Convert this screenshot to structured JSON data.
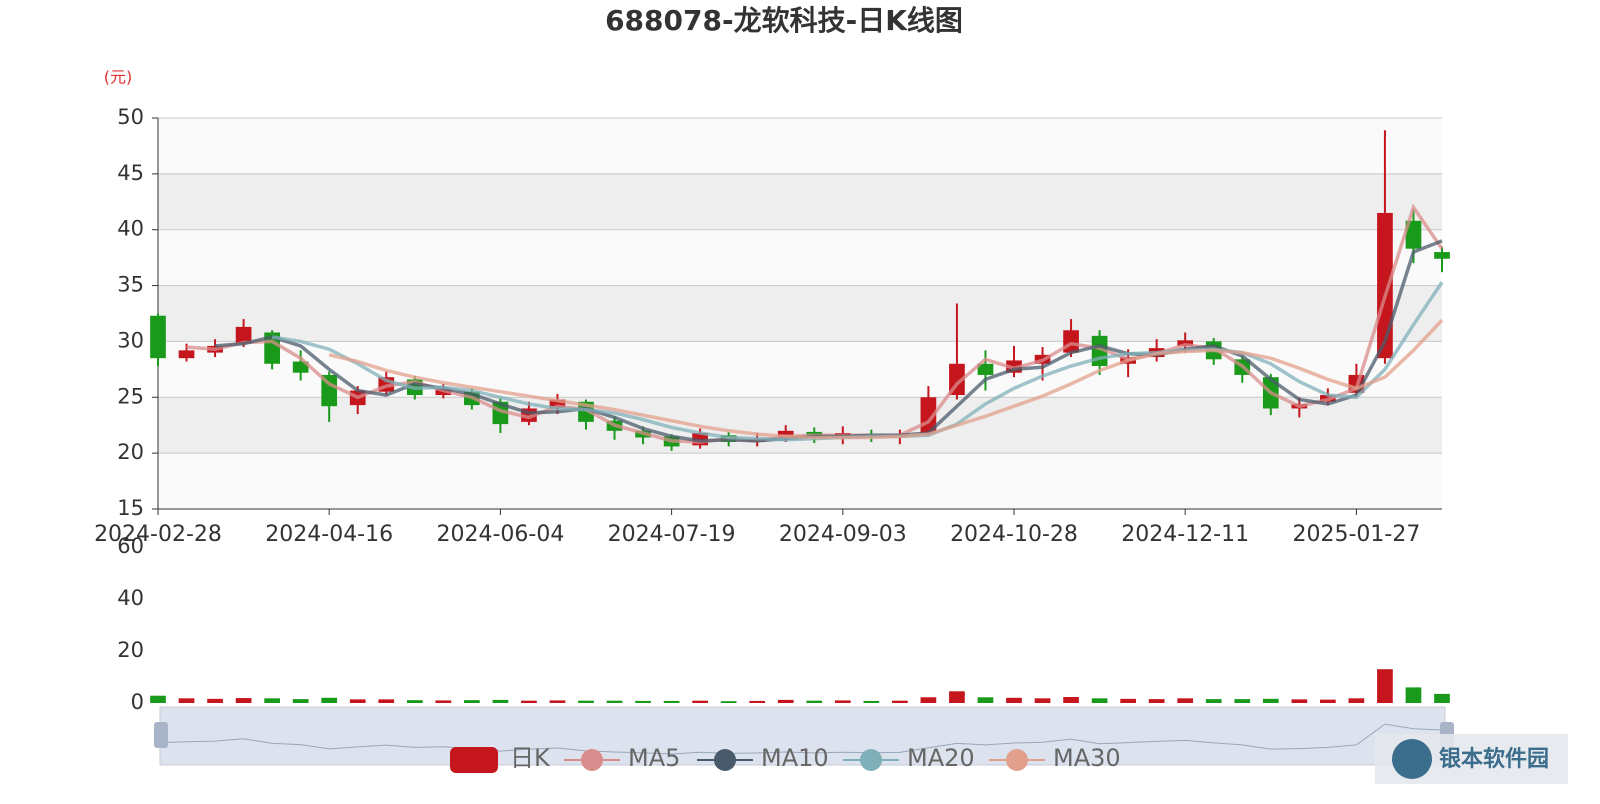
{
  "chart_data": [
    {
      "type": "candlestick",
      "title": "688078-龙软科技-日K线图",
      "ylabel": "(元)",
      "watermark": "银本软件园",
      "categories": [
        "2024-02-28",
        null,
        null,
        null,
        null,
        null,
        "2024-04-16",
        null,
        null,
        null,
        null,
        null,
        "2024-06-04",
        null,
        null,
        null,
        null,
        null,
        "2024-07-19",
        null,
        null,
        null,
        null,
        null,
        "2024-09-03",
        null,
        null,
        null,
        null,
        null,
        "2024-10-28",
        null,
        null,
        null,
        null,
        null,
        "2024-12-11",
        null,
        null,
        null,
        null,
        null,
        "2025-01-27",
        null,
        null,
        null
      ],
      "ylim": [
        15,
        50
      ],
      "yticks": [
        15,
        20,
        25,
        30,
        35,
        40,
        45,
        50
      ],
      "grid": true,
      "up_color": "#c4161c",
      "down_color": "#1a9a1a",
      "series": [
        {
          "name": "日K",
          "type": "candlestick",
          "color": "#c4161c",
          "values": [
            [
              32.3,
              28.5,
              27.8,
              32.5
            ],
            [
              28.5,
              29.2,
              28.2,
              29.8
            ],
            [
              29.0,
              29.6,
              28.6,
              30.2
            ],
            [
              29.8,
              31.3,
              29.5,
              32.0
            ],
            [
              30.8,
              28.0,
              27.5,
              31.0
            ],
            [
              28.2,
              27.2,
              26.5,
              29.2
            ],
            [
              27.0,
              24.2,
              22.8,
              27.3
            ],
            [
              24.3,
              25.6,
              23.5,
              26.0
            ],
            [
              25.5,
              26.8,
              25.2,
              27.3
            ],
            [
              26.6,
              25.2,
              24.8,
              26.9
            ],
            [
              25.2,
              25.7,
              24.9,
              26.2
            ],
            [
              25.5,
              24.3,
              23.9,
              25.8
            ],
            [
              24.6,
              22.6,
              21.8,
              24.9
            ],
            [
              22.8,
              24.0,
              22.5,
              24.6
            ],
            [
              24.0,
              24.8,
              23.5,
              25.3
            ],
            [
              24.6,
              22.8,
              22.1,
              24.8
            ],
            [
              22.9,
              22.0,
              21.2,
              23.3
            ],
            [
              22.0,
              21.4,
              20.8,
              22.4
            ],
            [
              21.5,
              20.6,
              20.2,
              21.7
            ],
            [
              20.7,
              21.8,
              20.4,
              22.2
            ],
            [
              21.6,
              21.0,
              20.6,
              21.9
            ],
            [
              21.0,
              21.3,
              20.6,
              21.8
            ],
            [
              21.4,
              22.0,
              21.0,
              22.5
            ],
            [
              21.9,
              21.4,
              20.9,
              22.3
            ],
            [
              21.4,
              21.8,
              20.8,
              22.4
            ],
            [
              21.6,
              21.5,
              21.0,
              22.1
            ],
            [
              21.4,
              21.7,
              20.8,
              22.1
            ],
            [
              21.8,
              25.0,
              21.6,
              26.0
            ],
            [
              25.2,
              28.0,
              24.8,
              33.4
            ],
            [
              28.0,
              27.0,
              25.6,
              29.2
            ],
            [
              27.2,
              28.3,
              26.8,
              29.6
            ],
            [
              28.0,
              28.8,
              26.5,
              29.5
            ],
            [
              29.0,
              31.0,
              28.6,
              32.0
            ],
            [
              30.5,
              27.8,
              27.0,
              31.0
            ],
            [
              28.0,
              28.6,
              26.8,
              29.3
            ],
            [
              28.6,
              29.4,
              28.2,
              30.2
            ],
            [
              29.6,
              30.1,
              29.0,
              30.8
            ],
            [
              30.0,
              28.4,
              27.9,
              30.3
            ],
            [
              28.4,
              27.0,
              26.3,
              28.7
            ],
            [
              26.8,
              24.0,
              23.4,
              27.1
            ],
            [
              24.0,
              24.4,
              23.2,
              25.0
            ],
            [
              24.6,
              25.2,
              24.3,
              25.8
            ],
            [
              25.4,
              27.0,
              25.0,
              28.0
            ],
            [
              28.5,
              41.5,
              28.0,
              48.9
            ],
            [
              40.8,
              38.3,
              37.0,
              41.8
            ],
            [
              38.0,
              37.4,
              36.2,
              38.5
            ]
          ]
        },
        {
          "name": "MA5",
          "type": "line",
          "color": "#d98c8c",
          "values": [
            null,
            29.5,
            29.3,
            29.9,
            30.0,
            28.5,
            26.2,
            25.0,
            26.0,
            26.4,
            25.6,
            25.0,
            23.8,
            23.2,
            24.2,
            23.9,
            22.5,
            21.8,
            21.1,
            21.0,
            21.3,
            21.1,
            21.5,
            21.6,
            21.6,
            21.6,
            21.6,
            22.8,
            26.2,
            28.4,
            27.6,
            28.3,
            29.8,
            29.4,
            28.4,
            28.9,
            29.7,
            29.4,
            27.8,
            25.4,
            24.2,
            24.8,
            25.8,
            34.0,
            42.0,
            38.3
          ]
        },
        {
          "name": "MA10",
          "type": "line",
          "color": "#495b6b",
          "values": [
            null,
            null,
            29.6,
            29.8,
            30.4,
            29.6,
            27.5,
            25.6,
            25.2,
            26.2,
            25.8,
            25.3,
            24.4,
            23.6,
            23.7,
            24.0,
            23.2,
            22.2,
            21.5,
            21.1,
            21.2,
            21.1,
            21.3,
            21.5,
            21.5,
            21.6,
            21.6,
            21.8,
            24.2,
            26.6,
            27.5,
            27.7,
            29.0,
            29.6,
            28.9,
            28.8,
            29.3,
            29.6,
            28.7,
            26.6,
            24.8,
            24.4,
            25.2,
            30.0,
            38.0,
            39.0
          ]
        },
        {
          "name": "MA20",
          "type": "line",
          "color": "#7fb0ba",
          "values": [
            null,
            null,
            null,
            null,
            30.4,
            30.0,
            29.3,
            28.0,
            26.5,
            25.8,
            25.9,
            25.6,
            25.0,
            24.4,
            24.0,
            23.9,
            23.6,
            23.0,
            22.3,
            21.8,
            21.4,
            21.3,
            21.2,
            21.3,
            21.4,
            21.5,
            21.5,
            21.6,
            22.6,
            24.4,
            25.8,
            26.9,
            27.8,
            28.5,
            28.9,
            29.0,
            29.2,
            29.3,
            29.0,
            28.0,
            26.4,
            25.2,
            25.0,
            27.5,
            31.5,
            35.3
          ]
        },
        {
          "name": "MA30",
          "type": "line",
          "color": "#e2a08c",
          "values": [
            null,
            null,
            null,
            null,
            null,
            null,
            28.8,
            28.2,
            27.4,
            26.8,
            26.3,
            25.9,
            25.5,
            25.1,
            24.7,
            24.3,
            23.9,
            23.4,
            22.9,
            22.4,
            22.0,
            21.7,
            21.5,
            21.4,
            21.4,
            21.4,
            21.5,
            21.7,
            22.5,
            23.3,
            24.2,
            25.1,
            26.2,
            27.4,
            28.3,
            28.9,
            29.1,
            29.2,
            29.0,
            28.5,
            27.6,
            26.6,
            25.8,
            26.8,
            29.2,
            31.9
          ]
        }
      ]
    },
    {
      "type": "bar",
      "ylim": [
        0,
        60
      ],
      "yticks": [
        0,
        20,
        40,
        60
      ],
      "values": [
        2.8,
        1.8,
        1.6,
        1.9,
        1.8,
        1.5,
        2.0,
        1.4,
        1.4,
        1.1,
        1.0,
        1.1,
        1.2,
        0.9,
        1.0,
        0.9,
        0.9,
        0.8,
        0.8,
        0.9,
        0.7,
        0.8,
        1.2,
        0.9,
        1.0,
        0.8,
        0.9,
        2.2,
        4.5,
        2.2,
        2.0,
        1.8,
        2.3,
        1.8,
        1.6,
        1.5,
        1.8,
        1.5,
        1.5,
        1.6,
        1.4,
        1.3,
        1.8,
        13.0,
        6.0,
        3.5
      ]
    }
  ]
}
